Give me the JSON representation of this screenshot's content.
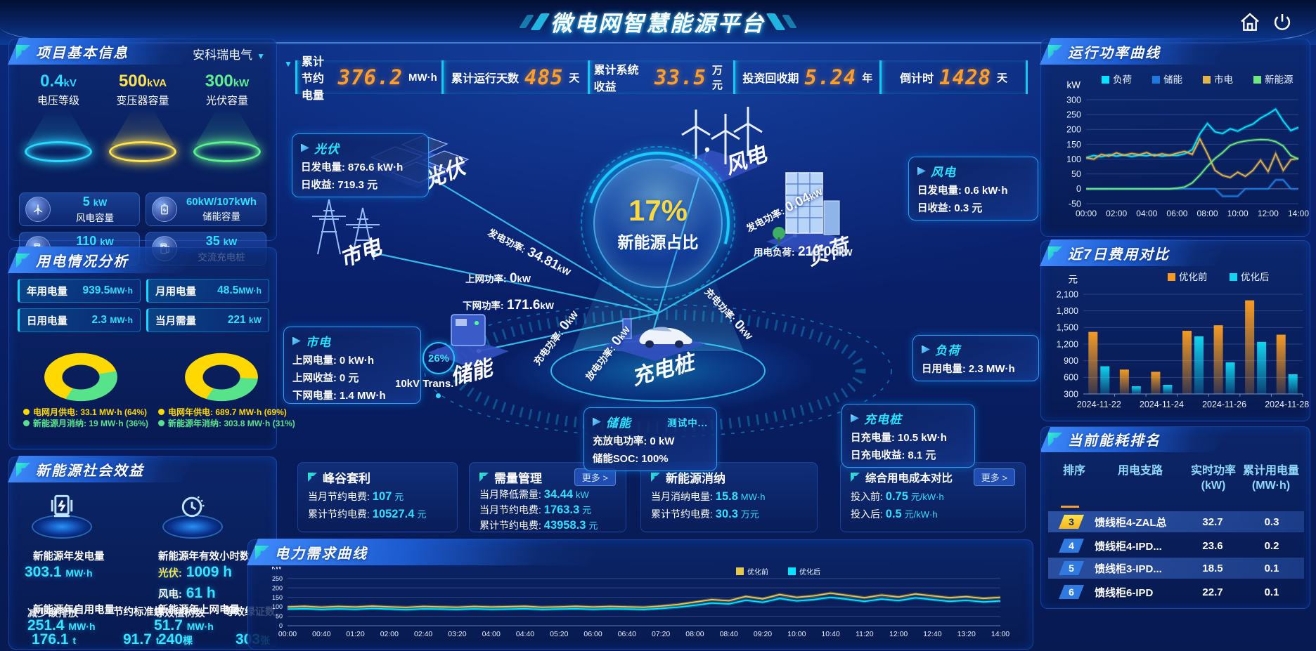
{
  "header": {
    "title": "微电网智慧能源平台"
  },
  "kpis": [
    {
      "label": "累计节约电量",
      "value": "376.2",
      "unit": "MW·h"
    },
    {
      "label": "累计运行天数",
      "value": "485",
      "unit": "天"
    },
    {
      "label": "累计系统收益",
      "value": "33.5",
      "unit": "万元"
    },
    {
      "label": "投资回收期",
      "value": "5.24",
      "unit": "年"
    },
    {
      "label": "倒计时",
      "value": "1428",
      "unit": "天"
    }
  ],
  "project": {
    "title": "项目基本信息",
    "company": "安科瑞电气",
    "platforms": [
      {
        "value": "0.4",
        "unit": "kV",
        "label": "电压等级",
        "color": "#2bd9ff"
      },
      {
        "value": "500",
        "unit": "kVA",
        "label": "变压器容量",
        "color": "#ffe24d"
      },
      {
        "value": "300",
        "unit": "kW",
        "label": "光伏容量",
        "color": "#5df08e"
      }
    ],
    "cards": [
      {
        "value": "5",
        "unit": "kW",
        "label": "风电容量"
      },
      {
        "value": "60kW/107kWh",
        "unit": "",
        "label": "储能容量"
      },
      {
        "value": "110",
        "unit": "kW",
        "label": "直流充电桩"
      },
      {
        "value": "35",
        "unit": "kW",
        "label": "交流充电桩"
      }
    ]
  },
  "usage": {
    "title": "用电情况分析",
    "stats": [
      {
        "label": "年用电量",
        "value": "939.5",
        "unit": "MW·h"
      },
      {
        "label": "月用电量",
        "value": "48.5",
        "unit": "MW·h"
      },
      {
        "label": "日用电量",
        "value": "2.3",
        "unit": "MW·h"
      },
      {
        "label": "当月需量",
        "value": "221",
        "unit": "kW"
      }
    ],
    "donuts": [
      {
        "pct": 64,
        "legend": [
          {
            "label": "电网月供电:",
            "value": "33.1 MW·h (64%)",
            "color": "#ffd800"
          },
          {
            "label": "新能源月消纳:",
            "value": "19 MW·h (36%)",
            "color": "#57e389"
          }
        ]
      },
      {
        "pct": 69,
        "legend": [
          {
            "label": "电网年供电:",
            "value": "689.7 MW·h (69%)",
            "color": "#ffd800"
          },
          {
            "label": "新能源年消纳:",
            "value": "303.8 MW·h (31%)",
            "color": "#57e389"
          }
        ]
      }
    ]
  },
  "benefits": {
    "title": "新能源社会效益",
    "gen": {
      "label": "新能源年发电量",
      "value": "303.1",
      "unit": "MW·h"
    },
    "hours": {
      "label": "新能源年有效小时数",
      "pv": "光伏:",
      "pv_value": "1009 h",
      "wind": "风电:",
      "wind_value": "61 h"
    },
    "left_overlap": {
      "a_label": "新能源年自用电量",
      "a_value": "251.4",
      "a_unit": "MW·h",
      "b_label": "减少碳排放",
      "b_value": "176.1",
      "b_unit": "t",
      "c_label": "节约标准煤",
      "c_value": "91.7",
      "c_unit": "t"
    },
    "right_overlap": {
      "a_label": "新能源年上网电量",
      "a_value": "51.7",
      "a_unit": "MW·h",
      "b_label": "等效植树数",
      "b_value": "240",
      "b_unit": "棵",
      "c_label": "等效绿证数",
      "c_value": "303",
      "c_unit": "张"
    }
  },
  "scene": {
    "center": {
      "pct": "17%",
      "label": "新能源占比"
    },
    "devices": {
      "pv": "光伏",
      "wind": "风电",
      "grid": "市电",
      "storage": "储能",
      "charger": "充电桩",
      "load": "负荷"
    },
    "boxes": {
      "pv": {
        "title": "光伏",
        "r1_label": "日发电量:",
        "r1_value": "876.6 kW·h",
        "r2_label": "日收益:",
        "r2_value": "719.3 元"
      },
      "wind": {
        "title": "风电",
        "r1_label": "日发电量:",
        "r1_value": "0.6 kW·h",
        "r2_label": "日收益:",
        "r2_value": "0.3 元"
      },
      "grid": {
        "title": "市电",
        "r1_label": "上网电量:",
        "r1_value": "0 kW·h",
        "r2_label": "上网收益:",
        "r2_value": "0 元",
        "r3_label": "下网电量:",
        "r3_value": "1.4 MW·h"
      },
      "storage": {
        "title": "储能",
        "badge": "测试中...",
        "r1_label": "充放电功率:",
        "r1_value": "0 kW",
        "r2_label": "储能SOC:",
        "r2_value": "100%"
      },
      "load": {
        "title": "负荷",
        "r1_label": "日用电量:",
        "r1_value": "2.3 MW·h"
      },
      "charger": {
        "title": "充电桩",
        "r1_label": "日充电量:",
        "r1_value": "10.5 kW·h",
        "r2_label": "日充电收益:",
        "r2_value": "8.1 元"
      }
    },
    "transformer": {
      "pct": "26%",
      "label": "10kV Trans."
    },
    "flows": {
      "pv_gen": {
        "label": "发电功率:",
        "value": "34.81",
        "unit": "kW"
      },
      "wind_gen": {
        "label": "发电功率:",
        "value": "0.04",
        "unit": "kW"
      },
      "to_grid": {
        "label": "上网功率:",
        "value": "0",
        "unit": "kW"
      },
      "from_grid": {
        "label": "下网功率:",
        "value": "171.6",
        "unit": "kW"
      },
      "load": {
        "label": "用电负荷:",
        "value": "210.06",
        "unit": "kW"
      },
      "st_charge": {
        "label": "充电功率:",
        "value": "0",
        "unit": "kW"
      },
      "st_discharge": {
        "label": "放电功率:",
        "value": "0",
        "unit": "kW"
      },
      "ev_charge": {
        "label": "充电功率:",
        "value": "0",
        "unit": "kW"
      }
    }
  },
  "mini_cards": [
    {
      "title": "峰谷套利",
      "more": "",
      "rows": [
        {
          "label": "当月节约电费:",
          "value": "107",
          "unit": "元"
        },
        {
          "label": "累计节约电费:",
          "value": "10527.4",
          "unit": "元"
        }
      ]
    },
    {
      "title": "需量管理",
      "more": "更多 >",
      "rows": [
        {
          "label": "当月降低需量:",
          "value": "34.44",
          "unit": "kW"
        },
        {
          "label": "当月节约电费:",
          "value": "1763.3",
          "unit": "元"
        },
        {
          "label": "累计节约电费:",
          "value": "43958.3",
          "unit": "元"
        }
      ]
    },
    {
      "title": "新能源消纳",
      "more": "",
      "rows": [
        {
          "label": "当月消纳电量:",
          "value": "15.8",
          "unit": "MW·h"
        },
        {
          "label": "累计节约电费:",
          "value": "30.3",
          "unit": "万元"
        }
      ]
    },
    {
      "title": "综合用电成本对比",
      "more": "更多 >",
      "rows": [
        {
          "label": "投入前:",
          "value": "0.75",
          "unit": "元/kW·h"
        },
        {
          "label": "投入后:",
          "value": "0.5",
          "unit": "元/kW·h"
        }
      ]
    }
  ],
  "ranking": {
    "title": "当前能耗排名",
    "headers": {
      "rank": "排序",
      "branch": "用电支路",
      "power": "实时功率",
      "power_unit": "(kW)",
      "energy": "累计用电量",
      "energy_unit": "(MW·h)"
    },
    "rows": [
      {
        "rank": "3",
        "branch": "馈线柜4-ZAL总",
        "power": "32.7",
        "energy": "0.3"
      },
      {
        "rank": "4",
        "branch": "馈线柜4-IPD...",
        "power": "23.6",
        "energy": "0.2"
      },
      {
        "rank": "5",
        "branch": "馈线柜3-IPD...",
        "power": "18.5",
        "energy": "0.1"
      },
      {
        "rank": "6",
        "branch": "馈线柜6-IPD",
        "power": "22.7",
        "energy": "0.1"
      }
    ]
  },
  "panel_titles": {
    "power_curve": "运行功率曲线",
    "cost_compare": "近7日费用对比",
    "demand_curve": "电力需求曲线"
  },
  "chart_data": [
    {
      "id": "power_curve",
      "type": "line",
      "title": "运行功率曲线",
      "ylabel": "kW",
      "ylim": [
        -50,
        300
      ],
      "yticks": [
        300,
        250,
        200,
        150,
        100,
        50,
        0,
        -50
      ],
      "xticks": [
        "00:00",
        "02:00",
        "04:00",
        "06:00",
        "08:00",
        "10:00",
        "12:00",
        "14:00"
      ],
      "legend_pos": "top",
      "grid": true,
      "series": [
        {
          "name": "负荷",
          "color": "#00e5ff",
          "values": [
            105,
            112,
            108,
            115,
            110,
            114,
            109,
            113,
            111,
            115,
            110,
            113,
            112,
            118,
            132,
            185,
            220,
            192,
            186,
            202,
            194,
            208,
            218,
            238,
            252,
            268,
            228,
            196,
            207
          ]
        },
        {
          "name": "储能",
          "color": "#1f7ae0",
          "values": [
            0,
            0,
            0,
            0,
            0,
            0,
            0,
            0,
            0,
            0,
            0,
            0,
            0,
            0,
            0,
            0,
            0,
            0,
            -25,
            -25,
            -25,
            0,
            0,
            0,
            0,
            30,
            30,
            0,
            0
          ]
        },
        {
          "name": "市电",
          "color": "#e0b44c",
          "values": [
            105,
            100,
            116,
            110,
            121,
            113,
            119,
            115,
            122,
            111,
            118,
            113,
            120,
            126,
            116,
            168,
            118,
            62,
            45,
            38,
            56,
            42,
            62,
            96,
            58,
            118,
            62,
            98,
            102
          ]
        },
        {
          "name": "新能源",
          "color": "#6ce87f",
          "values": [
            0,
            0,
            0,
            0,
            0,
            0,
            0,
            0,
            0,
            0,
            0,
            0,
            2,
            6,
            20,
            46,
            76,
            102,
            122,
            146,
            156,
            161,
            164,
            166,
            165,
            159,
            144,
            112,
            100
          ]
        }
      ]
    },
    {
      "id": "cost_compare",
      "type": "bar",
      "title": "近7日费用对比",
      "ylabel": "元",
      "ylim": [
        300,
        2100
      ],
      "yticks": [
        2100,
        1800,
        1500,
        1200,
        900,
        600,
        300
      ],
      "ytick_labels": [
        "2,100",
        "1,800",
        "1,500",
        "1,200",
        "900",
        "600",
        "300"
      ],
      "categories": [
        "2024-11-22",
        "2024-11-23",
        "2024-11-24",
        "2024-11-25",
        "2024-11-26",
        "2024-11-27",
        "2024-11-28"
      ],
      "xtick_show": [
        "2024-11-22",
        "2024-11-24",
        "2024-11-26",
        "2024-11-28"
      ],
      "legend_pos": "top-right",
      "grid": true,
      "series": [
        {
          "name": "优化前",
          "color": "#f59a23",
          "values": [
            1420,
            740,
            700,
            1440,
            1540,
            1990,
            1370
          ]
        },
        {
          "name": "优化后",
          "color": "#11d4f0",
          "values": [
            800,
            440,
            465,
            1340,
            870,
            1240,
            655
          ]
        }
      ]
    },
    {
      "id": "demand_curve",
      "type": "line",
      "title": "电力需求曲线",
      "ylabel": "kW",
      "ylim": [
        0,
        260
      ],
      "yticks": [
        250,
        200,
        150,
        100,
        50,
        0
      ],
      "xticks": [
        "00:00",
        "00:40",
        "01:20",
        "02:00",
        "02:40",
        "03:20",
        "04:00",
        "04:40",
        "05:20",
        "06:00",
        "06:40",
        "07:20",
        "08:00",
        "08:40",
        "09:20",
        "10:00",
        "10:40",
        "11:20",
        "12:00",
        "12:40",
        "13:20",
        "14:00"
      ],
      "legend_pos": "top-right",
      "grid": true,
      "series": [
        {
          "name": "优化前",
          "color": "#e8c84b",
          "values": [
            100,
            103,
            98,
            102,
            99,
            104,
            100,
            97,
            102,
            100,
            98,
            102,
            99,
            101,
            103,
            98,
            100,
            103,
            99,
            102,
            100,
            98,
            104,
            112,
            125,
            138,
            132,
            155,
            142,
            165,
            150,
            158,
            172,
            160,
            148,
            162,
            152,
            168,
            158,
            148,
            154,
            144,
            150
          ]
        },
        {
          "name": "优化后",
          "color": "#00e5ff",
          "values": [
            88,
            90,
            86,
            89,
            87,
            91,
            88,
            85,
            89,
            88,
            86,
            89,
            87,
            88,
            90,
            86,
            88,
            90,
            87,
            89,
            88,
            86,
            91,
            98,
            108,
            120,
            115,
            135,
            124,
            144,
            131,
            138,
            150,
            140,
            129,
            141,
            133,
            147,
            138,
            129,
            134,
            126,
            131
          ]
        }
      ]
    }
  ]
}
